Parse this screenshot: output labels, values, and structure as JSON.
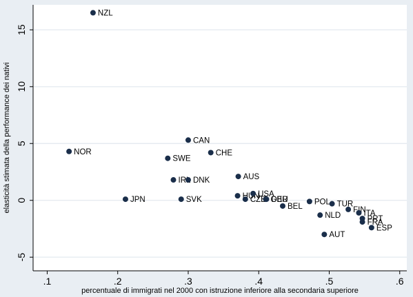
{
  "chart_data": {
    "type": "scatter",
    "title": "",
    "xlabel": "percentuale di immigrati nel 2000 con istruzione inferiore alla secondaria superiore",
    "ylabel": "elasticità stimata della performance dei nativi",
    "xlim": [
      0.08,
      0.61
    ],
    "ylim": [
      -6.2,
      17.2
    ],
    "x_ticks": [
      0.1,
      0.2,
      0.3,
      0.4,
      0.5,
      0.6
    ],
    "x_tick_labels": [
      ".1",
      ".2",
      ".3",
      ".4",
      ".5",
      ".6"
    ],
    "y_ticks": [
      -5,
      0,
      5,
      10,
      15
    ],
    "y_tick_labels": [
      "-5",
      "0",
      "5",
      "10",
      "15"
    ],
    "grid": "horizontal",
    "marker_color": "#1a2e4a",
    "points": [
      {
        "label": "NZL",
        "x": 0.165,
        "y": 16.5
      },
      {
        "label": "NOR",
        "x": 0.131,
        "y": 4.3
      },
      {
        "label": "CAN",
        "x": 0.3,
        "y": 5.3
      },
      {
        "label": "CHE",
        "x": 0.332,
        "y": 4.2
      },
      {
        "label": "SWE",
        "x": 0.271,
        "y": 3.7
      },
      {
        "label": "AUS",
        "x": 0.371,
        "y": 2.1
      },
      {
        "label": "IRL",
        "x": 0.279,
        "y": 1.8
      },
      {
        "label": "DNK",
        "x": 0.3,
        "y": 1.8
      },
      {
        "label": "JPN",
        "x": 0.211,
        "y": 0.1
      },
      {
        "label": "SVK",
        "x": 0.29,
        "y": 0.1
      },
      {
        "label": "HUN",
        "x": 0.37,
        "y": 0.4
      },
      {
        "label": "USA",
        "x": 0.392,
        "y": 0.6
      },
      {
        "label": "CZE",
        "x": 0.381,
        "y": 0.1
      },
      {
        "label": "GBR",
        "x": 0.41,
        "y": 0.1
      },
      {
        "label": "DEU",
        "x": 0.411,
        "y": 0.1
      },
      {
        "label": "BEL",
        "x": 0.434,
        "y": -0.5
      },
      {
        "label": "POL",
        "x": 0.472,
        "y": -0.1
      },
      {
        "label": "TUR",
        "x": 0.504,
        "y": -0.3
      },
      {
        "label": "NLD",
        "x": 0.487,
        "y": -1.3
      },
      {
        "label": "FIN",
        "x": 0.527,
        "y": -0.8
      },
      {
        "label": "ITA",
        "x": 0.542,
        "y": -1.1
      },
      {
        "label": "PRT",
        "x": 0.547,
        "y": -1.6
      },
      {
        "label": "FRA",
        "x": 0.547,
        "y": -1.9
      },
      {
        "label": "ESP",
        "x": 0.56,
        "y": -2.4
      },
      {
        "label": "AUT",
        "x": 0.493,
        "y": -3.0
      }
    ]
  }
}
